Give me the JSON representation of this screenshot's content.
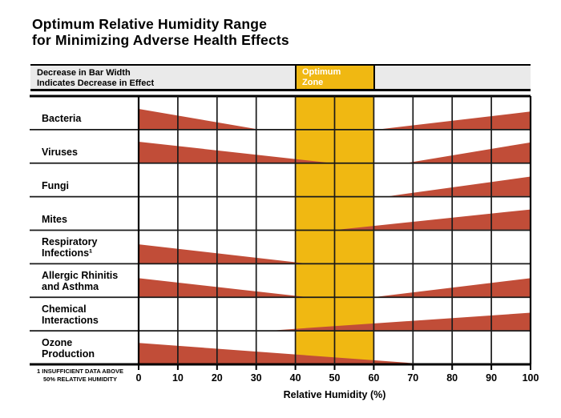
{
  "title": {
    "line1": "Optimum Relative Humidity Range",
    "line2": "for Minimizing Adverse Health Effects"
  },
  "legend": {
    "decrease_note": "Decrease in Bar Width\nIndicates Decrease in Effect",
    "optimum_zone_label": "Optimum\nZone"
  },
  "footnote": "1 INSUFFICIENT DATA ABOVE\n50% RELATIVE HUMIDITY",
  "colors": {
    "bar": "#C14D38",
    "optimum_zone": "#F0B812",
    "legend_bg": "#EAEAEA",
    "grid_line": "#1A1A1A",
    "outer_line": "#000000"
  },
  "chart_data": {
    "type": "bar",
    "subtype": "tapered-range-bars (Sterling humidity diagram)",
    "title": "Optimum Relative Humidity Range for Minimizing Adverse Health Effects",
    "xlabel": "Relative Humidity (%)",
    "xlim": [
      0,
      100
    ],
    "x_ticks": [
      0,
      10,
      20,
      30,
      40,
      50,
      60,
      70,
      80,
      90,
      100
    ],
    "grid": true,
    "optimum_zone": {
      "from": 40,
      "to": 60
    },
    "bar_meaning": "Wedge width indicates magnitude of adverse effect; bars taper to zero where effect disappears",
    "rows": [
      {
        "label": "Bacteria",
        "bars": [
          {
            "side": "left",
            "from": 0,
            "to": 30,
            "height_frac": 0.6
          },
          {
            "side": "right",
            "from": 62,
            "to": 100,
            "height_frac": 0.52
          }
        ]
      },
      {
        "label": "Viruses",
        "bars": [
          {
            "side": "left",
            "from": 0,
            "to": 48,
            "height_frac": 0.62
          },
          {
            "side": "right",
            "from": 69,
            "to": 100,
            "height_frac": 0.6
          }
        ]
      },
      {
        "label": "Fungi",
        "bars": [
          {
            "side": "right",
            "from": 64,
            "to": 100,
            "height_frac": 0.58
          }
        ]
      },
      {
        "label": "Mites",
        "bars": [
          {
            "side": "right",
            "from": 51,
            "to": 100,
            "height_frac": 0.6
          }
        ]
      },
      {
        "label": "Respiratory\nInfections¹",
        "bars": [
          {
            "side": "left",
            "from": 0,
            "to": 42,
            "height_frac": 0.56
          }
        ]
      },
      {
        "label": "Allergic Rhinitis\nand Asthma",
        "bars": [
          {
            "side": "left",
            "from": 0,
            "to": 42,
            "height_frac": 0.55
          },
          {
            "side": "right",
            "from": 61,
            "to": 100,
            "height_frac": 0.55
          }
        ]
      },
      {
        "label": "Chemical\nInteractions",
        "bars": [
          {
            "side": "right",
            "from": 35,
            "to": 100,
            "height_frac": 0.52
          }
        ]
      },
      {
        "label": "Ozone\nProduction",
        "bars": [
          {
            "side": "left",
            "from": 0,
            "to": 72,
            "height_frac": 0.62
          }
        ]
      }
    ]
  }
}
